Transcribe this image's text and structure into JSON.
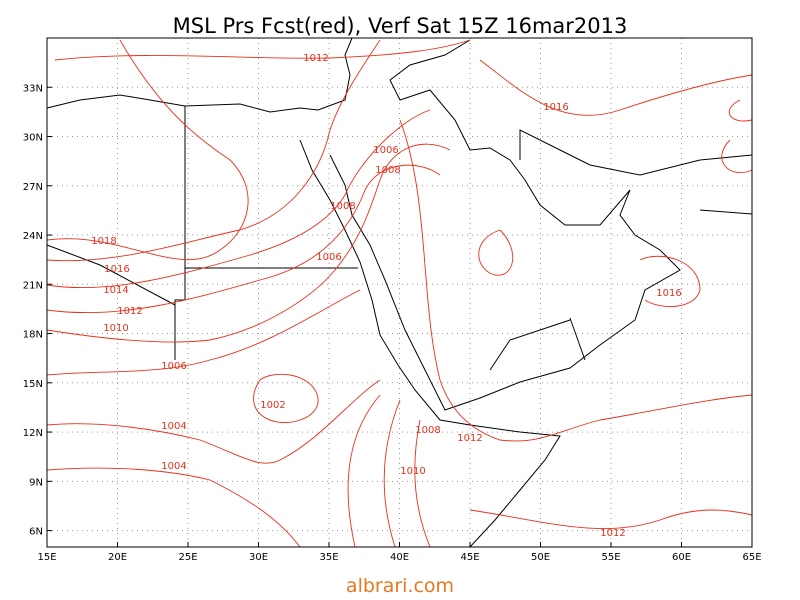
{
  "title": "MSL Prs Fcst(red), Verf Sat 15Z 16mar2013",
  "watermark": "albrari.com",
  "map": {
    "lonlim": [
      15,
      65
    ],
    "latlim": [
      5,
      36
    ],
    "lonticks": [
      {
        "value": 15,
        "label": "15E"
      },
      {
        "value": 20,
        "label": "20E"
      },
      {
        "value": 25,
        "label": "25E"
      },
      {
        "value": 30,
        "label": "30E"
      },
      {
        "value": 35,
        "label": "35E"
      },
      {
        "value": 40,
        "label": "40E"
      },
      {
        "value": 45,
        "label": "45E"
      },
      {
        "value": 50,
        "label": "50E"
      },
      {
        "value": 55,
        "label": "55E"
      },
      {
        "value": 60,
        "label": "60E"
      },
      {
        "value": 65,
        "label": "65E"
      }
    ],
    "latticks": [
      {
        "value": 6,
        "label": "6N"
      },
      {
        "value": 9,
        "label": "9N"
      },
      {
        "value": 12,
        "label": "12N"
      },
      {
        "value": 15,
        "label": "15N"
      },
      {
        "value": 18,
        "label": "18N"
      },
      {
        "value": 21,
        "label": "21N"
      },
      {
        "value": 24,
        "label": "24N"
      },
      {
        "value": 27,
        "label": "27N"
      },
      {
        "value": 30,
        "label": "30N"
      },
      {
        "value": 33,
        "label": "33N"
      }
    ],
    "grid": true,
    "contour_color": "#e8301c",
    "contour_labels": [
      1012,
      1016,
      1006,
      1008,
      1008,
      1018,
      1006,
      1016,
      1014,
      1012,
      1010,
      1006,
      1002,
      1004,
      1008,
      1012,
      1004,
      1010,
      1016,
      1012
    ]
  }
}
